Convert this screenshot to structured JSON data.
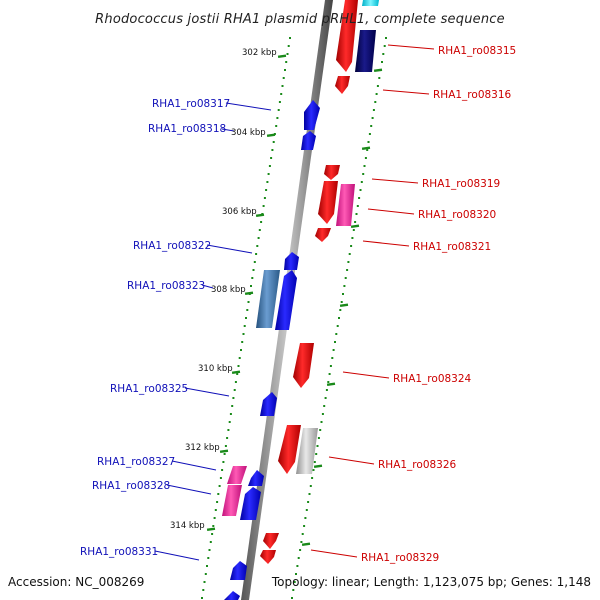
{
  "title": "Rhodococcus jostii RHA1 plasmid pRHL1, complete sequence",
  "footer": {
    "accession": "Accession: NC_008269",
    "topology": "Topology: linear; Length: 1,123,075 bp; Genes: 1,148"
  },
  "ticks": [
    "302 kbp",
    "304 kbp",
    "306 kbp",
    "308 kbp",
    "310 kbp",
    "312 kbp",
    "314 kbp"
  ],
  "genes_left": [
    {
      "label": "RHA1_ro08317"
    },
    {
      "label": "RHA1_ro08318"
    },
    {
      "label": "RHA1_ro08322"
    },
    {
      "label": "RHA1_ro08323"
    },
    {
      "label": "RHA1_ro08325"
    },
    {
      "label": "RHA1_ro08327"
    },
    {
      "label": "RHA1_ro08328"
    },
    {
      "label": "RHA1_ro08331"
    }
  ],
  "genes_right": [
    {
      "label": "RHA1_ro08315"
    },
    {
      "label": "RHA1_ro08316"
    },
    {
      "label": "RHA1_ro08319"
    },
    {
      "label": "RHA1_ro08320"
    },
    {
      "label": "RHA1_ro08321"
    },
    {
      "label": "RHA1_ro08324"
    },
    {
      "label": "RHA1_ro08326"
    },
    {
      "label": "RHA1_ro08329"
    }
  ],
  "colors": {
    "forward": "#ff0000",
    "reverse": "#0000ff",
    "magenta": "#ff1493",
    "navy": "#00006e",
    "cyan": "#00e5ff",
    "steel": "#3f73a6",
    "gray": "#bdbdbd",
    "tick_green": "#1a8a1a",
    "label_left": "#1010b8",
    "label_right": "#cc0000"
  }
}
